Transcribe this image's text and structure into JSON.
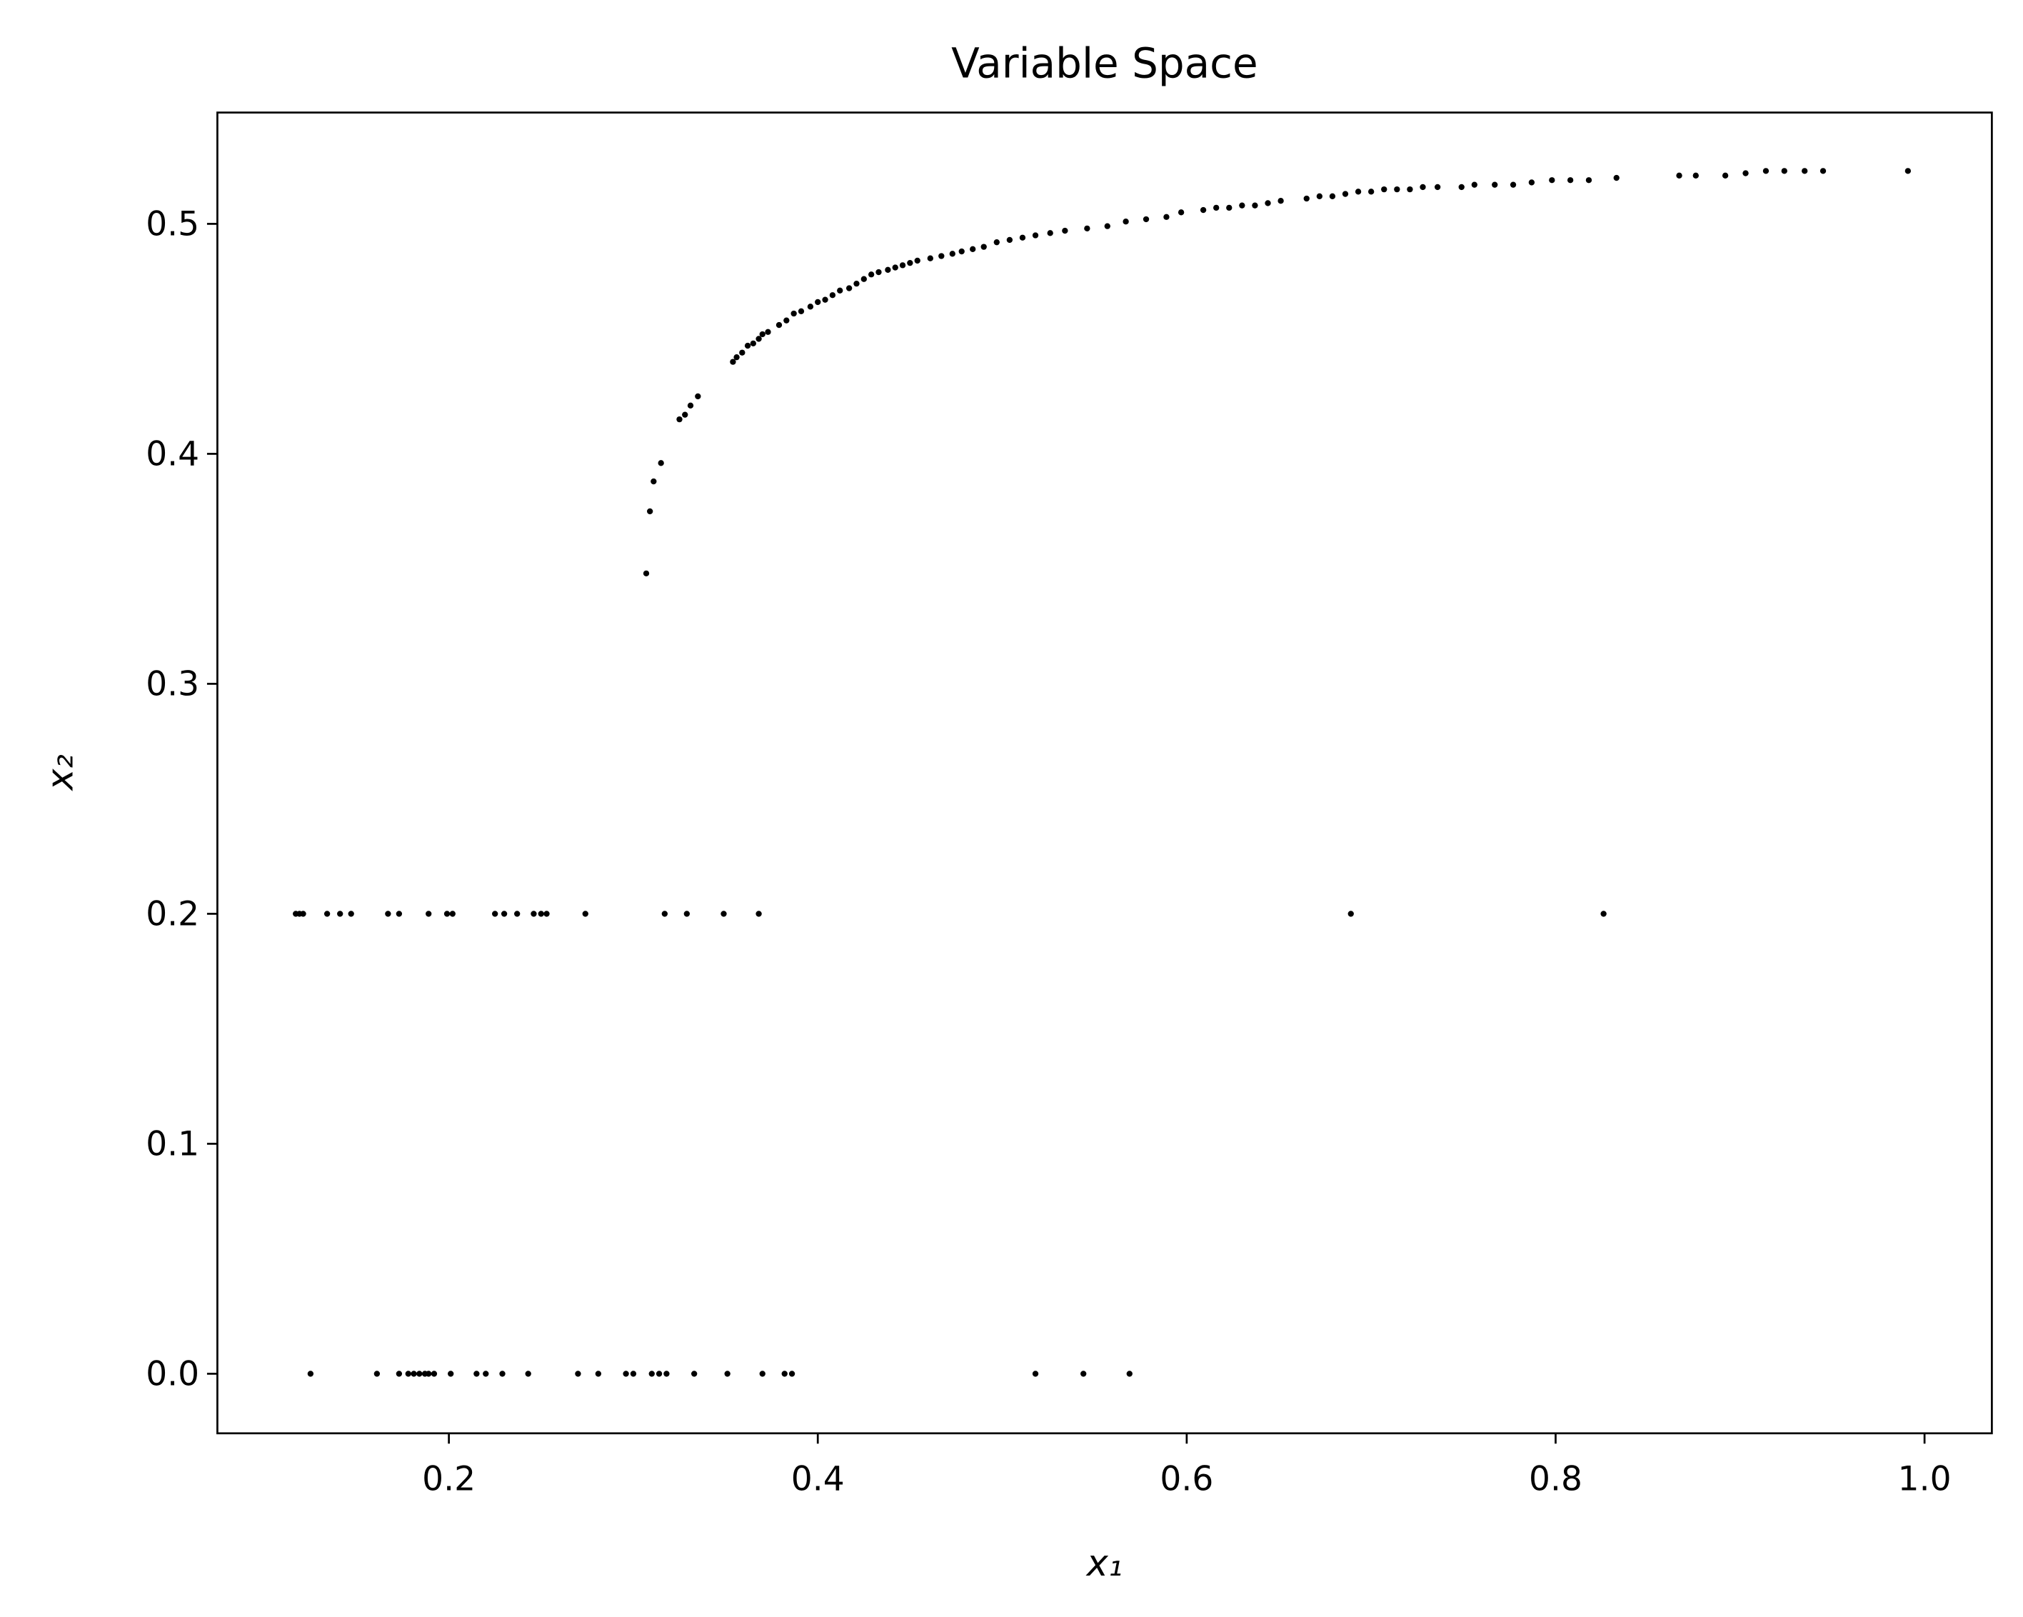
{
  "chart_data": {
    "type": "scatter",
    "title": "Variable Space",
    "xlabel": "x₁",
    "ylabel": "x₂",
    "color": "#000000",
    "xlim": [
      0.0745,
      1.0365
    ],
    "ylim": [
      -0.0259,
      0.5484
    ],
    "xticks": [
      0.2,
      0.4,
      0.6,
      0.8,
      {
        "value": 1,
        "label": "1.0"
      }
    ],
    "yticks": [
      {
        "value": 0,
        "label": "0.0"
      },
      0.1,
      0.2,
      0.3,
      0.4,
      0.5
    ],
    "x": [
      0.125,
      0.161,
      0.173,
      0.178,
      0.181,
      0.184,
      0.187,
      0.189,
      0.192,
      0.201,
      0.215,
      0.22,
      0.229,
      0.243,
      0.27,
      0.281,
      0.296,
      0.3,
      0.31,
      0.314,
      0.318,
      0.333,
      0.351,
      0.37,
      0.382,
      0.386,
      0.518,
      0.544,
      0.569,
      0.117,
      0.119,
      0.121,
      0.134,
      0.141,
      0.147,
      0.167,
      0.173,
      0.189,
      0.199,
      0.202,
      0.225,
      0.23,
      0.237,
      0.246,
      0.25,
      0.253,
      0.274,
      0.317,
      0.329,
      0.349,
      0.368,
      0.689,
      0.826,
      0.307,
      0.309,
      0.311,
      0.315,
      0.325,
      0.328,
      0.331,
      0.335,
      0.354,
      0.356,
      0.359,
      0.362,
      0.365,
      0.368,
      0.37,
      0.373,
      0.379,
      0.383,
      0.387,
      0.391,
      0.396,
      0.4,
      0.404,
      0.408,
      0.412,
      0.417,
      0.421,
      0.425,
      0.429,
      0.433,
      0.438,
      0.442,
      0.446,
      0.45,
      0.454,
      0.461,
      0.467,
      0.473,
      0.478,
      0.484,
      0.49,
      0.497,
      0.504,
      0.511,
      0.518,
      0.526,
      0.534,
      0.546,
      0.557,
      0.567,
      0.578,
      0.589,
      0.597,
      0.609,
      0.616,
      0.623,
      0.63,
      0.637,
      0.644,
      0.651,
      0.665,
      0.672,
      0.679,
      0.686,
      0.693,
      0.7,
      0.707,
      0.714,
      0.721,
      0.728,
      0.736,
      0.749,
      0.756,
      0.767,
      0.777,
      0.787,
      0.798,
      0.808,
      0.818,
      0.833,
      0.867,
      0.876,
      0.892,
      0.903,
      0.914,
      0.924,
      0.935,
      0.945,
      0.991
    ],
    "values": [
      0,
      0,
      0,
      0,
      0,
      0,
      0,
      0,
      0,
      0,
      0,
      0,
      0,
      0,
      0,
      0,
      0,
      0,
      0,
      0,
      0,
      0,
      0,
      0,
      0,
      0,
      0,
      0,
      0,
      0.2,
      0.2,
      0.2,
      0.2,
      0.2,
      0.2,
      0.2,
      0.2,
      0.2,
      0.2,
      0.2,
      0.2,
      0.2,
      0.2,
      0.2,
      0.2,
      0.2,
      0.2,
      0.2,
      0.2,
      0.2,
      0.2,
      0.2,
      0.2,
      0.348,
      0.375,
      0.388,
      0.396,
      0.415,
      0.417,
      0.421,
      0.425,
      0.44,
      0.442,
      0.444,
      0.447,
      0.448,
      0.45,
      0.452,
      0.453,
      0.456,
      0.458,
      0.461,
      0.462,
      0.464,
      0.466,
      0.467,
      0.469,
      0.471,
      0.472,
      0.474,
      0.476,
      0.478,
      0.479,
      0.48,
      0.481,
      0.482,
      0.483,
      0.484,
      0.485,
      0.486,
      0.487,
      0.488,
      0.489,
      0.49,
      0.492,
      0.493,
      0.494,
      0.495,
      0.496,
      0.497,
      0.498,
      0.499,
      0.501,
      0.502,
      0.503,
      0.505,
      0.506,
      0.507,
      0.507,
      0.508,
      0.508,
      0.509,
      0.51,
      0.511,
      0.512,
      0.512,
      0.513,
      0.514,
      0.514,
      0.515,
      0.515,
      0.515,
      0.516,
      0.516,
      0.516,
      0.517,
      0.517,
      0.517,
      0.518,
      0.519,
      0.519,
      0.519,
      0.52,
      0.521,
      0.521,
      0.521,
      0.522,
      0.523,
      0.523,
      0.523,
      0.523,
      0.523
    ]
  }
}
